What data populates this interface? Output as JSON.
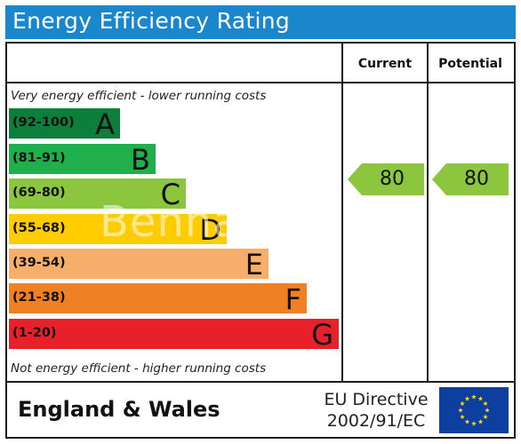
{
  "title": "Energy Efficiency Rating",
  "columns": {
    "current": "Current",
    "potential": "Potential"
  },
  "top_caption": "Very energy efficient - lower running costs",
  "bottom_caption": "Not energy efficient - higher running costs",
  "bands": [
    {
      "range": "(92-100)",
      "letter": "A",
      "color": "#0e7e3c"
    },
    {
      "range": "(81-91)",
      "letter": "B",
      "color": "#1fb04c"
    },
    {
      "range": "(69-80)",
      "letter": "C",
      "color": "#8cc63e"
    },
    {
      "range": "(55-68)",
      "letter": "D",
      "color": "#ffcc00"
    },
    {
      "range": "(39-54)",
      "letter": "E",
      "color": "#f6ae6a"
    },
    {
      "range": "(21-38)",
      "letter": "F",
      "color": "#ef8023"
    },
    {
      "range": "(1-20)",
      "letter": "G",
      "color": "#e8202a"
    }
  ],
  "current_rating": "80",
  "potential_rating": "80",
  "rating_arrow_color": "#8cc63e",
  "region": "England & Wales",
  "directive": [
    "EU Directive",
    "2002/91/EC"
  ],
  "flag_icon": "eu-flag-icon",
  "watermark": "Benham & Reeves"
}
